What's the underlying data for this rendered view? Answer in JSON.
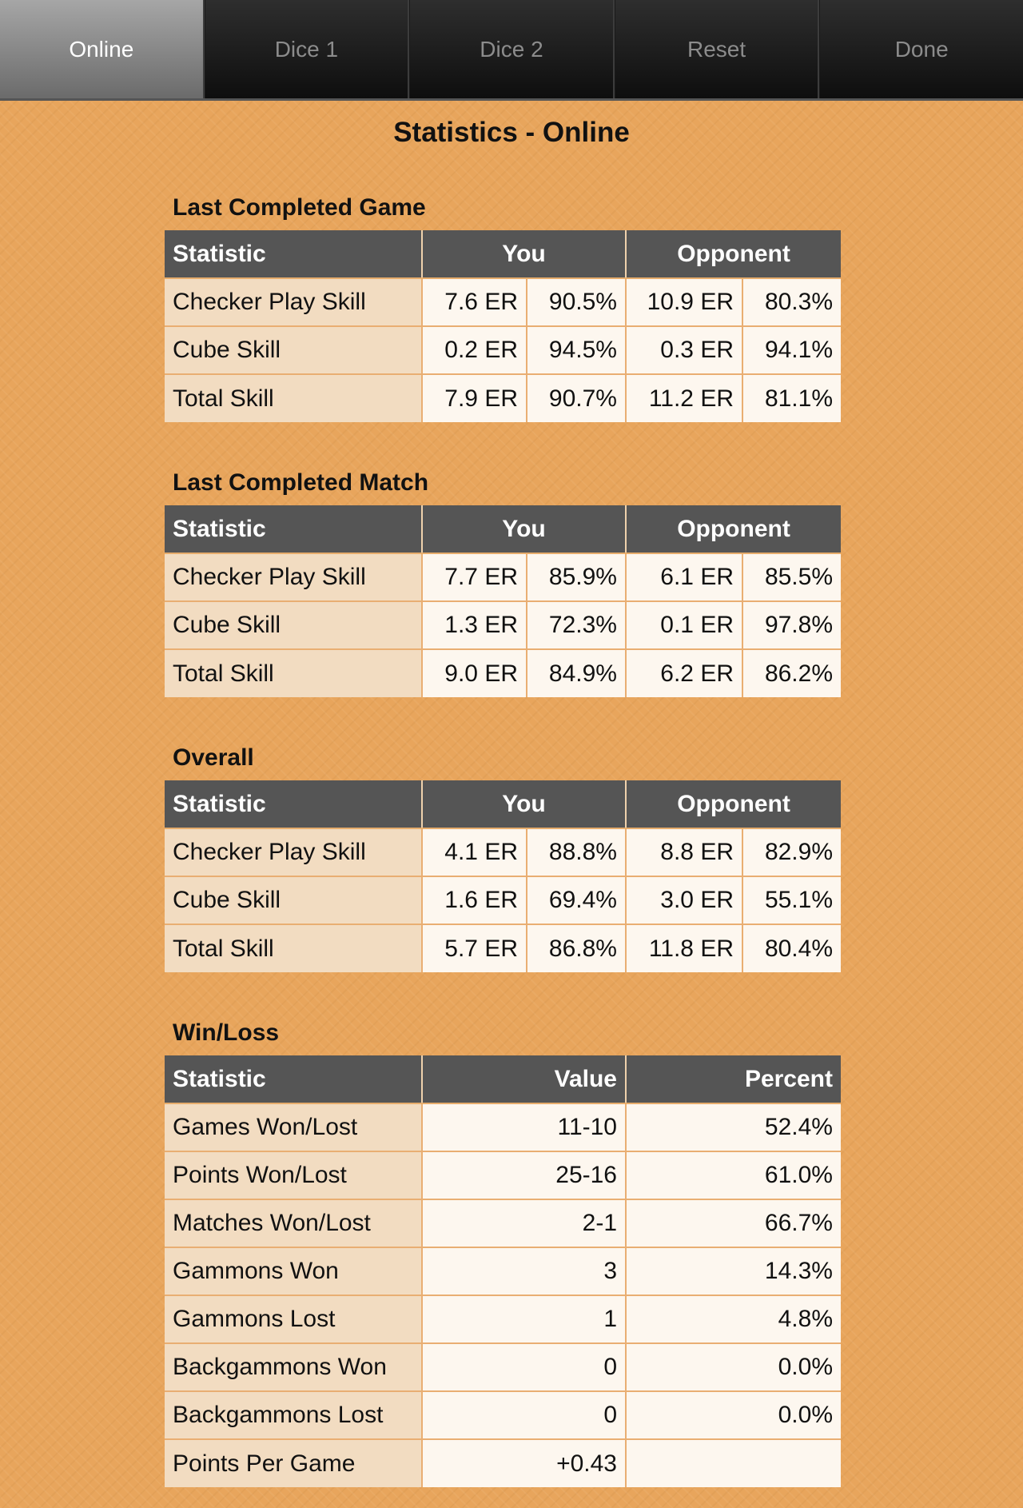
{
  "tabs": [
    {
      "label": "Online",
      "active": true
    },
    {
      "label": "Dice 1",
      "active": false
    },
    {
      "label": "Dice 2",
      "active": false
    },
    {
      "label": "Reset",
      "active": false
    },
    {
      "label": "Done",
      "active": false
    }
  ],
  "page_title": "Statistics - Online",
  "skill_sections": [
    {
      "title": "Last Completed Game",
      "headers": {
        "statistic": "Statistic",
        "you": "You",
        "opponent": "Opponent"
      },
      "rows": [
        {
          "label": "Checker Play Skill",
          "you_er": "7.6 ER",
          "you_pct": "90.5%",
          "opp_er": "10.9 ER",
          "opp_pct": "80.3%"
        },
        {
          "label": "Cube Skill",
          "you_er": "0.2 ER",
          "you_pct": "94.5%",
          "opp_er": "0.3 ER",
          "opp_pct": "94.1%"
        },
        {
          "label": "Total Skill",
          "you_er": "7.9 ER",
          "you_pct": "90.7%",
          "opp_er": "11.2 ER",
          "opp_pct": "81.1%"
        }
      ]
    },
    {
      "title": "Last Completed Match",
      "headers": {
        "statistic": "Statistic",
        "you": "You",
        "opponent": "Opponent"
      },
      "rows": [
        {
          "label": "Checker Play Skill",
          "you_er": "7.7 ER",
          "you_pct": "85.9%",
          "opp_er": "6.1 ER",
          "opp_pct": "85.5%"
        },
        {
          "label": "Cube Skill",
          "you_er": "1.3 ER",
          "you_pct": "72.3%",
          "opp_er": "0.1 ER",
          "opp_pct": "97.8%"
        },
        {
          "label": "Total Skill",
          "you_er": "9.0 ER",
          "you_pct": "84.9%",
          "opp_er": "6.2 ER",
          "opp_pct": "86.2%"
        }
      ]
    },
    {
      "title": "Overall",
      "headers": {
        "statistic": "Statistic",
        "you": "You",
        "opponent": "Opponent"
      },
      "rows": [
        {
          "label": "Checker Play Skill",
          "you_er": "4.1 ER",
          "you_pct": "88.8%",
          "opp_er": "8.8 ER",
          "opp_pct": "82.9%"
        },
        {
          "label": "Cube Skill",
          "you_er": "1.6 ER",
          "you_pct": "69.4%",
          "opp_er": "3.0 ER",
          "opp_pct": "55.1%"
        },
        {
          "label": "Total Skill",
          "you_er": "5.7 ER",
          "you_pct": "86.8%",
          "opp_er": "11.8 ER",
          "opp_pct": "80.4%"
        }
      ]
    }
  ],
  "win_loss": {
    "title": "Win/Loss",
    "headers": {
      "statistic": "Statistic",
      "value": "Value",
      "percent": "Percent"
    },
    "rows": [
      {
        "label": "Games Won/Lost",
        "value": "11-10",
        "percent": "52.4%"
      },
      {
        "label": "Points Won/Lost",
        "value": "25-16",
        "percent": "61.0%"
      },
      {
        "label": "Matches Won/Lost",
        "value": "2-1",
        "percent": "66.7%"
      },
      {
        "label": "Gammons Won",
        "value": "3",
        "percent": "14.3%"
      },
      {
        "label": "Gammons Lost",
        "value": "1",
        "percent": "4.8%"
      },
      {
        "label": "Backgammons Won",
        "value": "0",
        "percent": "0.0%"
      },
      {
        "label": "Backgammons Lost",
        "value": "0",
        "percent": "0.0%"
      },
      {
        "label": "Points Per Game",
        "value": "+0.43",
        "percent": ""
      }
    ]
  },
  "colors": {
    "background": "#e8a55c",
    "header_bg": "#555555",
    "label_cell_bg": "#f2dcc1",
    "value_cell_bg": "#fdf7ef",
    "active_tab_bg": "#8a8a8a",
    "tab_bg": "#1a1a1a"
  }
}
